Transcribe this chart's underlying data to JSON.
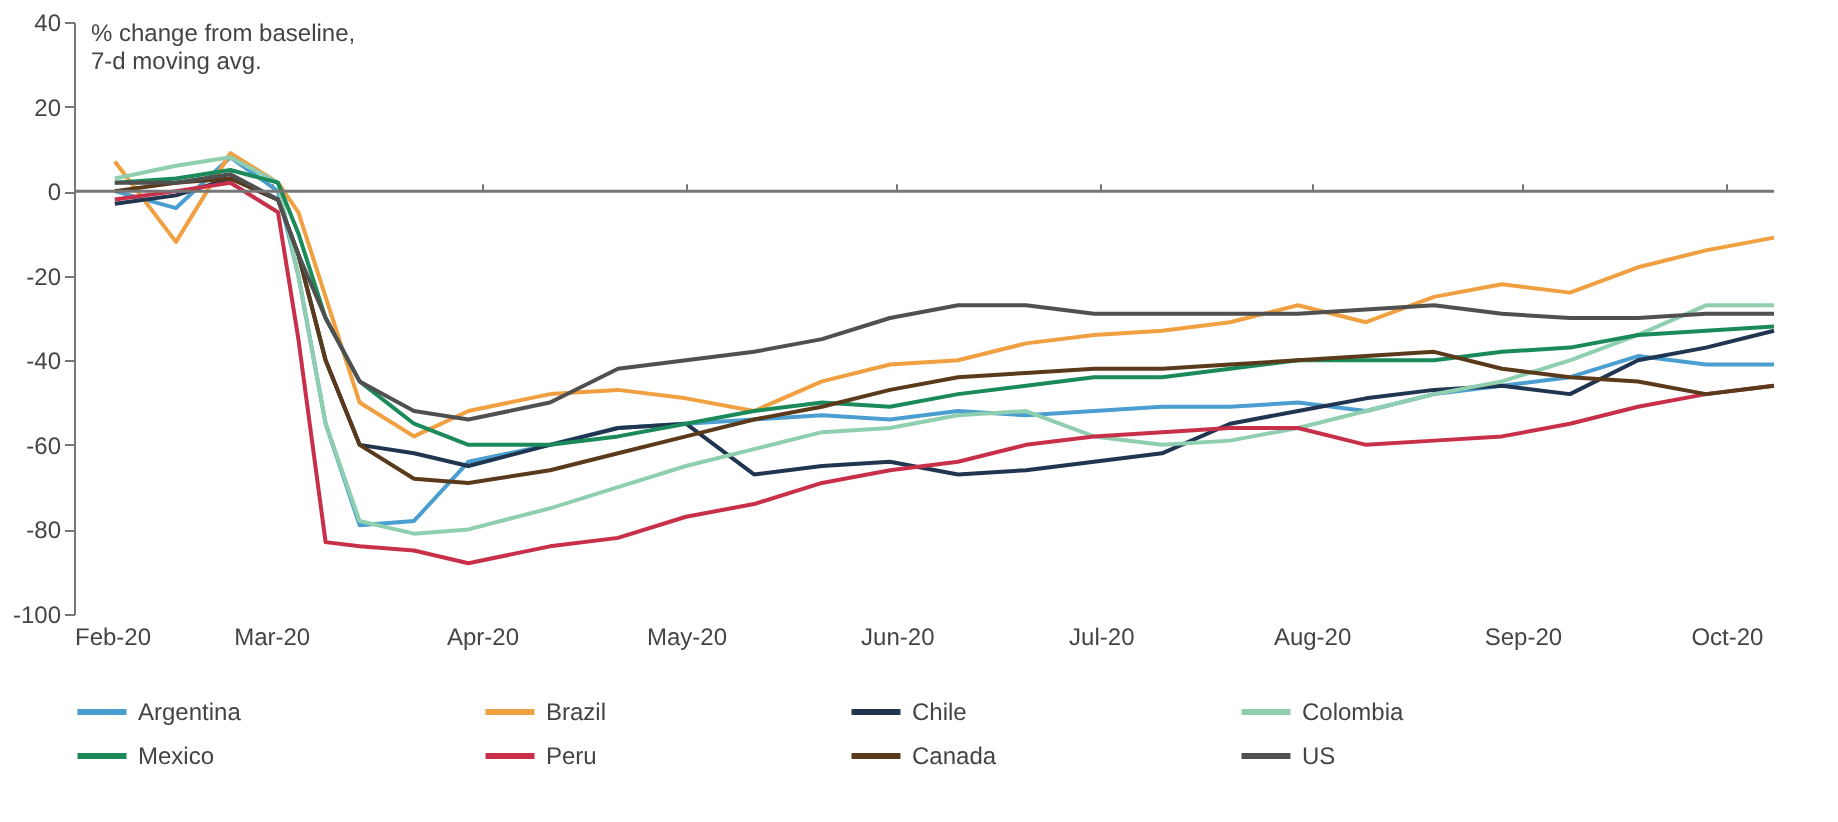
{
  "chart_data": {
    "type": "line",
    "ylabel": "% change from baseline,\n7-d moving avg.",
    "x": [
      "2020-02-07",
      "2020-02-16",
      "2020-02-24",
      "2020-03-02",
      "2020-03-05",
      "2020-03-09",
      "2020-03-14",
      "2020-03-22",
      "2020-03-30",
      "2020-04-11",
      "2020-04-21",
      "2020-05-01",
      "2020-05-11",
      "2020-05-21",
      "2020-05-31",
      "2020-06-10",
      "2020-06-20",
      "2020-06-30",
      "2020-07-10",
      "2020-07-20",
      "2020-07-30",
      "2020-08-09",
      "2020-08-19",
      "2020-08-29",
      "2020-09-08",
      "2020-09-18",
      "2020-09-28",
      "2020-10-08"
    ],
    "series": [
      {
        "name": "Argentina",
        "color": "#4a9fd0",
        "values": [
          0,
          -4,
          8,
          0,
          -20,
          -55,
          -79,
          -78,
          -64,
          -60,
          -56,
          -55,
          -54,
          -53,
          -54,
          -52,
          -53,
          -52,
          -51,
          -51,
          -50,
          -52,
          -48,
          -46,
          -44,
          -39,
          -41,
          -41
        ]
      },
      {
        "name": "Brazil",
        "color": "#f0a040",
        "values": [
          7,
          -12,
          9,
          2,
          -5,
          -25,
          -50,
          -58,
          -52,
          -48,
          -47,
          -49,
          -52,
          -45,
          -41,
          -40,
          -36,
          -34,
          -33,
          -31,
          -27,
          -31,
          -25,
          -22,
          -24,
          -18,
          -14,
          -11
        ]
      },
      {
        "name": "Chile",
        "color": "#1f3550",
        "values": [
          -3,
          -1,
          3,
          -2,
          -15,
          -40,
          -60,
          -62,
          -65,
          -60,
          -56,
          -55,
          -67,
          -65,
          -64,
          -67,
          -66,
          -64,
          -62,
          -55,
          -52,
          -49,
          -47,
          -46,
          -48,
          -40,
          -37,
          -33
        ]
      },
      {
        "name": "Colombia",
        "color": "#8fcfb0",
        "values": [
          3,
          6,
          8,
          2,
          -20,
          -55,
          -78,
          -81,
          -80,
          -75,
          -70,
          -65,
          -61,
          -57,
          -56,
          -53,
          -52,
          -58,
          -60,
          -59,
          -56,
          -52,
          -48,
          -45,
          -40,
          -34,
          -27,
          -27
        ]
      },
      {
        "name": "Mexico",
        "color": "#1a8a5a",
        "values": [
          2,
          3,
          5,
          2,
          -10,
          -30,
          -45,
          -55,
          -60,
          -60,
          -58,
          -55,
          -52,
          -50,
          -51,
          -48,
          -46,
          -44,
          -44,
          -42,
          -40,
          -40,
          -40,
          -38,
          -37,
          -34,
          -33,
          -32
        ]
      },
      {
        "name": "Peru",
        "color": "#c8304a",
        "values": [
          -2,
          0,
          2,
          -5,
          -35,
          -83,
          -84,
          -85,
          -88,
          -84,
          -82,
          -77,
          -74,
          -69,
          -66,
          -64,
          -60,
          -58,
          -57,
          -56,
          -56,
          -60,
          -59,
          -58,
          -55,
          -51,
          -48,
          -46
        ]
      },
      {
        "name": "Canada",
        "color": "#5a3a1a",
        "values": [
          0,
          2,
          3,
          -2,
          -15,
          -40,
          -60,
          -68,
          -69,
          -66,
          -62,
          -58,
          -54,
          -51,
          -47,
          -44,
          -43,
          -42,
          -42,
          -41,
          -40,
          -39,
          -38,
          -42,
          -44,
          -45,
          -48,
          -46
        ]
      },
      {
        "name": "US",
        "color": "#505050",
        "values": [
          2,
          2,
          4,
          -2,
          -15,
          -30,
          -45,
          -52,
          -54,
          -50,
          -42,
          -40,
          -38,
          -35,
          -30,
          -27,
          -27,
          -29,
          -29,
          -29,
          -29,
          -28,
          -27,
          -29,
          -30,
          -30,
          -29,
          -29
        ]
      }
    ],
    "xlim": [
      "2020-02-01",
      "2020-10-08"
    ],
    "xticks": [
      {
        "value": "2020-02-01",
        "label": "Feb-20"
      },
      {
        "value": "2020-03-01",
        "label": "Mar-20"
      },
      {
        "value": "2020-04-01",
        "label": "Apr-20"
      },
      {
        "value": "2020-05-01",
        "label": "May-20"
      },
      {
        "value": "2020-06-01",
        "label": "Jun-20"
      },
      {
        "value": "2020-07-01",
        "label": "Jul-20"
      },
      {
        "value": "2020-08-01",
        "label": "Aug-20"
      },
      {
        "value": "2020-09-01",
        "label": "Sep-20"
      },
      {
        "value": "2020-10-01",
        "label": "Oct-20"
      }
    ],
    "ylim": [
      -100,
      40
    ],
    "yticks": [
      -100,
      -80,
      -60,
      -40,
      -20,
      0,
      20,
      40
    ],
    "ref_lines": [
      {
        "axis": "y",
        "value": 0,
        "color": "#777777"
      }
    ],
    "grid": false,
    "legend": "bottom",
    "marker": "none",
    "line_style": "solid"
  }
}
